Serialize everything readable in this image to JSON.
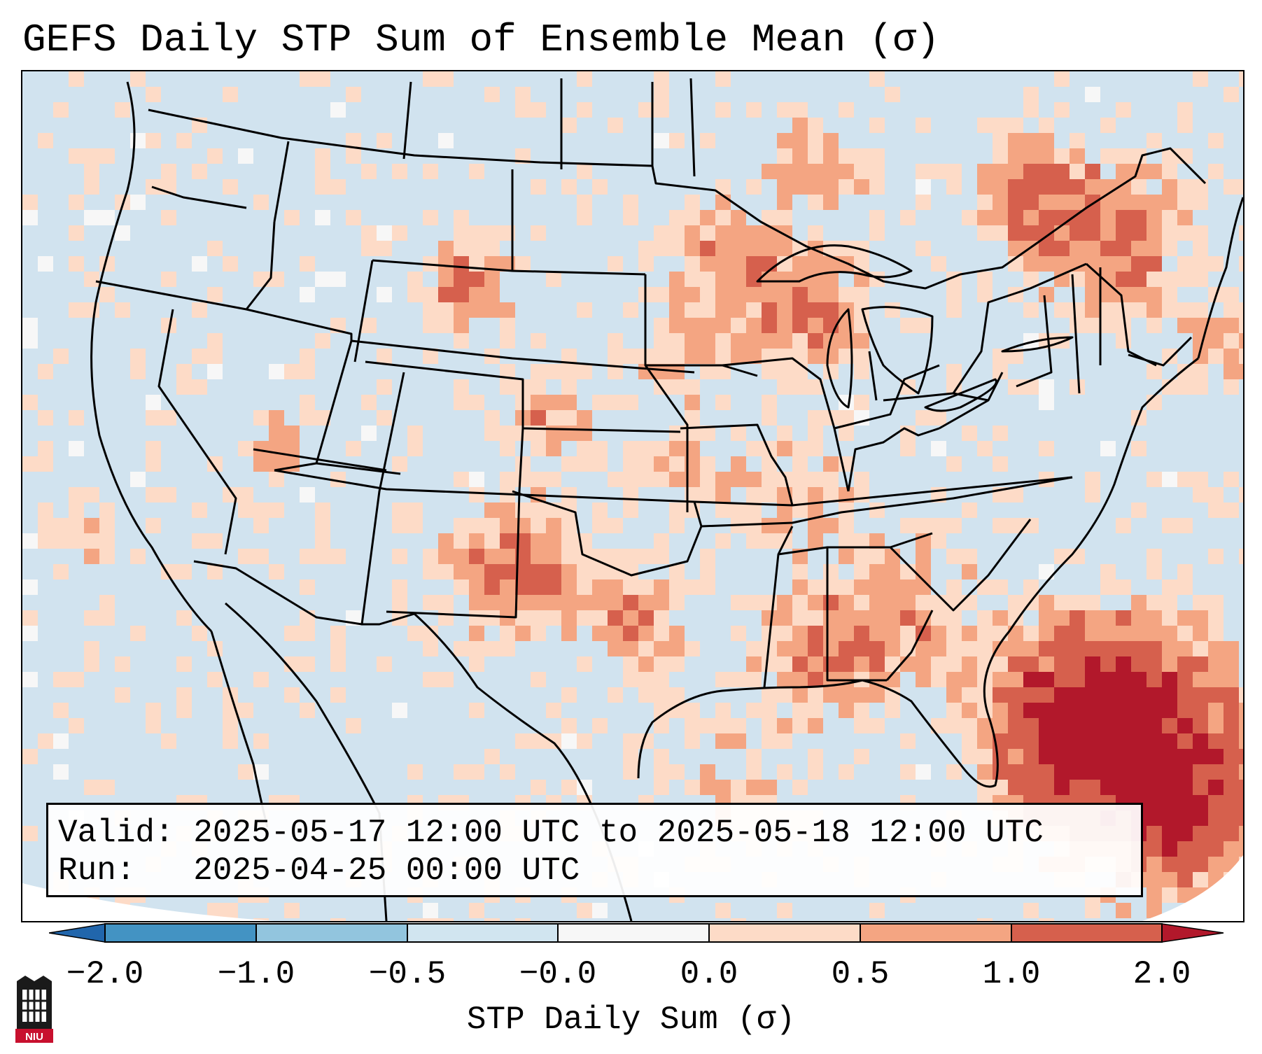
{
  "title": "GEFS Daily STP Sum of Ensemble Mean (σ)",
  "info": {
    "valid_label": "Valid:",
    "valid_text": "2025-05-17 12:00 UTC to 2025-05-18 12:00 UTC",
    "run_label": "Run:",
    "run_text": "2025-04-25 00:00 UTC"
  },
  "colorbar": {
    "label": "STP Daily Sum (σ)",
    "ticks": [
      "−2.0",
      "−1.0",
      "−0.5",
      "−0.0",
      "0.0",
      "0.5",
      "1.0",
      "2.0"
    ],
    "bins": [
      {
        "range": "< -2.0",
        "color": "#2166ac"
      },
      {
        "range": "-2.0 to -1.0",
        "color": "#4393c3"
      },
      {
        "range": "-1.0 to -0.5",
        "color": "#92c5de"
      },
      {
        "range": "-0.5 to -0.0",
        "color": "#d1e5f0"
      },
      {
        "range": "-0.0 to 0.0",
        "color": "#f7f7f7"
      },
      {
        "range": "0.0 to 0.5",
        "color": "#fddbc7"
      },
      {
        "range": "0.5 to 1.0",
        "color": "#f4a582"
      },
      {
        "range": "1.0 to 2.0",
        "color": "#d6604d"
      },
      {
        "range": "> 2.0",
        "color": "#b2182b"
      }
    ]
  },
  "map": {
    "region": "CONUS",
    "background_color": "#d1e3ef",
    "anomaly_clusters": [
      {
        "area": "Western Atlantic east of Florida",
        "level": "1.0 to 2.0+"
      },
      {
        "area": "Southeast Canada / New England",
        "level": "0.5 to 2.0"
      },
      {
        "area": "Upper Midwest / Wisconsin",
        "level": "0.5 to 2.0"
      },
      {
        "area": "Eastern New Mexico / West Texas",
        "level": "0.5 to 2.0"
      },
      {
        "area": "Gulf Coast states",
        "level": "0.0 to 1.0"
      }
    ]
  },
  "logo": {
    "text": "NIU"
  }
}
